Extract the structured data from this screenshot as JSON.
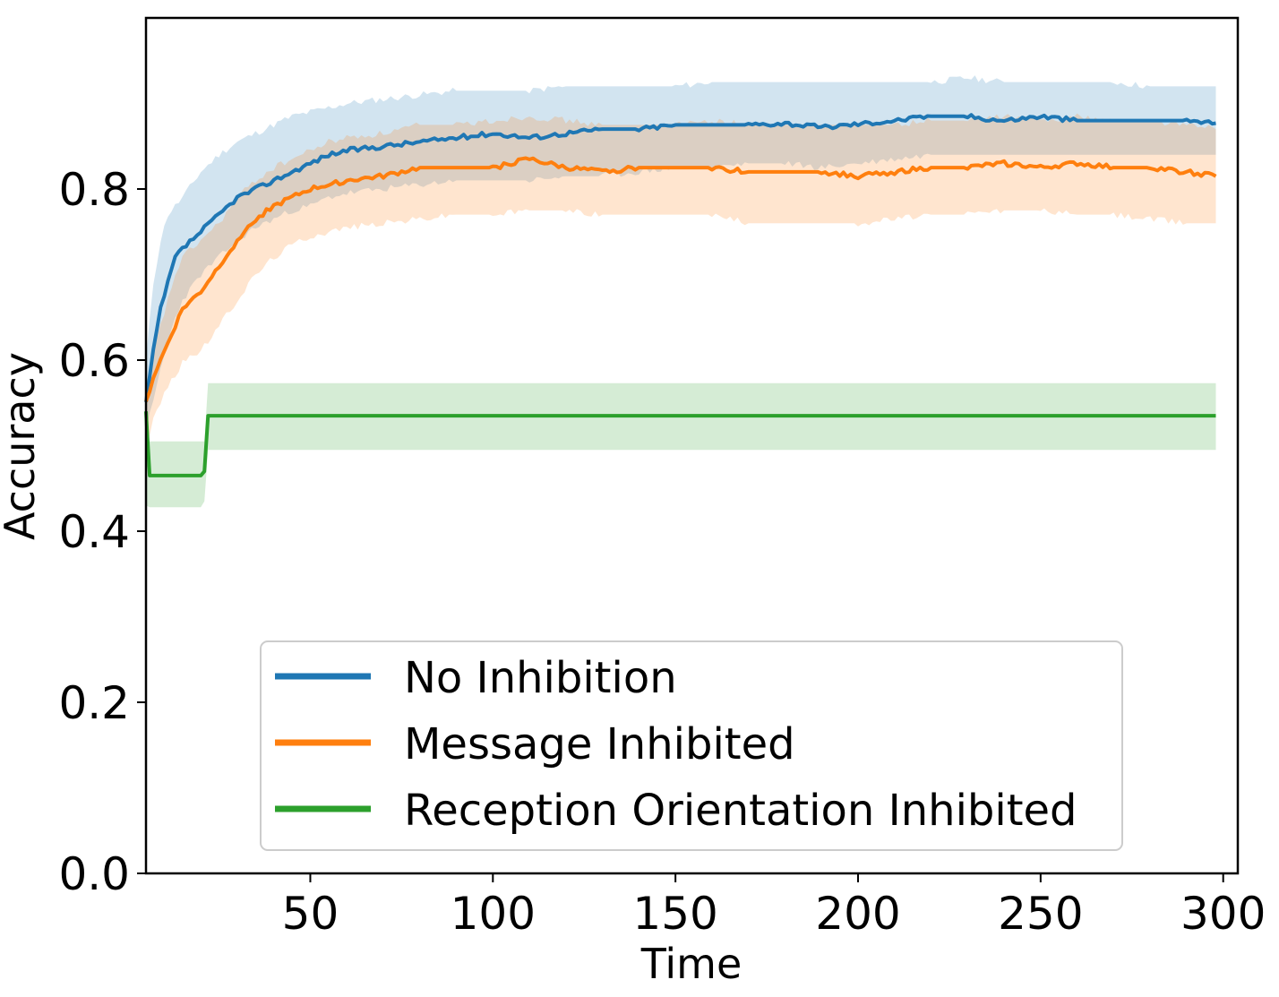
{
  "chart_data": {
    "type": "line",
    "title": "",
    "xlabel": "Time",
    "ylabel": "Accuracy",
    "xlim": [
      5,
      304
    ],
    "ylim": [
      0.0,
      1.0
    ],
    "x_ticks": [
      50,
      100,
      150,
      200,
      250,
      300
    ],
    "x_tick_labels": [
      "50",
      "100",
      "150",
      "200",
      "250",
      "300"
    ],
    "y_ticks": [
      0.0,
      0.2,
      0.4,
      0.6,
      0.8
    ],
    "y_tick_labels": [
      "0.0",
      "0.2",
      "0.4",
      "0.6",
      "0.8"
    ],
    "grid": false,
    "legend_position": "lower center",
    "series": [
      {
        "name": "No Inhibition",
        "color": "#1f77b4",
        "band_color": "#1f77b4",
        "mean": [
          [
            5,
            0.55
          ],
          [
            7,
            0.61
          ],
          [
            9,
            0.66
          ],
          [
            11,
            0.69
          ],
          [
            13,
            0.72
          ],
          [
            15,
            0.73
          ],
          [
            20,
            0.75
          ],
          [
            25,
            0.77
          ],
          [
            30,
            0.79
          ],
          [
            35,
            0.8
          ],
          [
            40,
            0.81
          ],
          [
            45,
            0.82
          ],
          [
            50,
            0.83
          ],
          [
            55,
            0.84
          ],
          [
            60,
            0.845
          ],
          [
            70,
            0.85
          ],
          [
            80,
            0.855
          ],
          [
            90,
            0.86
          ],
          [
            100,
            0.865
          ],
          [
            110,
            0.86
          ],
          [
            120,
            0.865
          ],
          [
            130,
            0.87
          ],
          [
            140,
            0.87
          ],
          [
            150,
            0.875
          ],
          [
            160,
            0.875
          ],
          [
            170,
            0.875
          ],
          [
            180,
            0.877
          ],
          [
            190,
            0.872
          ],
          [
            200,
            0.876
          ],
          [
            210,
            0.88
          ],
          [
            220,
            0.885
          ],
          [
            230,
            0.885
          ],
          [
            240,
            0.88
          ],
          [
            250,
            0.885
          ],
          [
            260,
            0.88
          ],
          [
            270,
            0.88
          ],
          [
            280,
            0.88
          ],
          [
            290,
            0.88
          ],
          [
            298,
            0.877
          ]
        ],
        "upper": [
          [
            5,
            0.6
          ],
          [
            7,
            0.69
          ],
          [
            9,
            0.74
          ],
          [
            11,
            0.77
          ],
          [
            13,
            0.78
          ],
          [
            15,
            0.79
          ],
          [
            20,
            0.82
          ],
          [
            25,
            0.84
          ],
          [
            30,
            0.855
          ],
          [
            35,
            0.865
          ],
          [
            40,
            0.875
          ],
          [
            45,
            0.885
          ],
          [
            50,
            0.89
          ],
          [
            55,
            0.895
          ],
          [
            60,
            0.9
          ],
          [
            70,
            0.905
          ],
          [
            80,
            0.91
          ],
          [
            90,
            0.915
          ],
          [
            100,
            0.915
          ],
          [
            110,
            0.915
          ],
          [
            120,
            0.92
          ],
          [
            130,
            0.92
          ],
          [
            140,
            0.92
          ],
          [
            150,
            0.92
          ],
          [
            160,
            0.925
          ],
          [
            170,
            0.925
          ],
          [
            180,
            0.925
          ],
          [
            190,
            0.925
          ],
          [
            200,
            0.925
          ],
          [
            210,
            0.925
          ],
          [
            220,
            0.925
          ],
          [
            230,
            0.93
          ],
          [
            240,
            0.925
          ],
          [
            250,
            0.925
          ],
          [
            260,
            0.925
          ],
          [
            270,
            0.925
          ],
          [
            280,
            0.92
          ],
          [
            290,
            0.92
          ],
          [
            298,
            0.92
          ]
        ],
        "lower": [
          [
            5,
            0.52
          ],
          [
            7,
            0.55
          ],
          [
            9,
            0.59
          ],
          [
            11,
            0.62
          ],
          [
            13,
            0.65
          ],
          [
            15,
            0.67
          ],
          [
            20,
            0.7
          ],
          [
            25,
            0.72
          ],
          [
            30,
            0.74
          ],
          [
            35,
            0.755
          ],
          [
            40,
            0.765
          ],
          [
            45,
            0.775
          ],
          [
            50,
            0.78
          ],
          [
            55,
            0.79
          ],
          [
            60,
            0.795
          ],
          [
            70,
            0.8
          ],
          [
            80,
            0.805
          ],
          [
            90,
            0.81
          ],
          [
            100,
            0.81
          ],
          [
            110,
            0.81
          ],
          [
            120,
            0.815
          ],
          [
            130,
            0.815
          ],
          [
            140,
            0.82
          ],
          [
            150,
            0.825
          ],
          [
            160,
            0.825
          ],
          [
            170,
            0.83
          ],
          [
            180,
            0.83
          ],
          [
            190,
            0.825
          ],
          [
            200,
            0.83
          ],
          [
            210,
            0.835
          ],
          [
            220,
            0.84
          ],
          [
            230,
            0.84
          ],
          [
            240,
            0.84
          ],
          [
            250,
            0.84
          ],
          [
            260,
            0.84
          ],
          [
            270,
            0.84
          ],
          [
            280,
            0.84
          ],
          [
            290,
            0.84
          ],
          [
            298,
            0.84
          ]
        ]
      },
      {
        "name": "Message Inhibited",
        "color": "#ff7f0e",
        "band_color": "#ff7f0e",
        "mean": [
          [
            5,
            0.55
          ],
          [
            7,
            0.58
          ],
          [
            9,
            0.6
          ],
          [
            11,
            0.62
          ],
          [
            13,
            0.64
          ],
          [
            15,
            0.66
          ],
          [
            20,
            0.68
          ],
          [
            25,
            0.71
          ],
          [
            30,
            0.74
          ],
          [
            35,
            0.765
          ],
          [
            40,
            0.78
          ],
          [
            45,
            0.79
          ],
          [
            50,
            0.8
          ],
          [
            55,
            0.805
          ],
          [
            60,
            0.81
          ],
          [
            70,
            0.815
          ],
          [
            80,
            0.825
          ],
          [
            90,
            0.825
          ],
          [
            100,
            0.825
          ],
          [
            110,
            0.835
          ],
          [
            120,
            0.825
          ],
          [
            130,
            0.82
          ],
          [
            140,
            0.825
          ],
          [
            150,
            0.825
          ],
          [
            160,
            0.825
          ],
          [
            170,
            0.82
          ],
          [
            180,
            0.82
          ],
          [
            190,
            0.82
          ],
          [
            200,
            0.815
          ],
          [
            210,
            0.82
          ],
          [
            220,
            0.825
          ],
          [
            230,
            0.825
          ],
          [
            240,
            0.83
          ],
          [
            250,
            0.825
          ],
          [
            260,
            0.83
          ],
          [
            270,
            0.825
          ],
          [
            280,
            0.825
          ],
          [
            290,
            0.82
          ],
          [
            298,
            0.815
          ]
        ],
        "upper": [
          [
            5,
            0.56
          ],
          [
            7,
            0.61
          ],
          [
            9,
            0.64
          ],
          [
            11,
            0.67
          ],
          [
            13,
            0.7
          ],
          [
            15,
            0.72
          ],
          [
            20,
            0.74
          ],
          [
            25,
            0.76
          ],
          [
            30,
            0.79
          ],
          [
            35,
            0.81
          ],
          [
            40,
            0.825
          ],
          [
            45,
            0.835
          ],
          [
            50,
            0.845
          ],
          [
            55,
            0.855
          ],
          [
            60,
            0.86
          ],
          [
            70,
            0.865
          ],
          [
            80,
            0.875
          ],
          [
            90,
            0.875
          ],
          [
            100,
            0.88
          ],
          [
            110,
            0.885
          ],
          [
            120,
            0.88
          ],
          [
            130,
            0.875
          ],
          [
            140,
            0.875
          ],
          [
            150,
            0.875
          ],
          [
            160,
            0.88
          ],
          [
            170,
            0.875
          ],
          [
            180,
            0.875
          ],
          [
            190,
            0.875
          ],
          [
            200,
            0.875
          ],
          [
            210,
            0.875
          ],
          [
            220,
            0.88
          ],
          [
            230,
            0.88
          ],
          [
            240,
            0.885
          ],
          [
            250,
            0.88
          ],
          [
            260,
            0.885
          ],
          [
            270,
            0.88
          ],
          [
            280,
            0.88
          ],
          [
            290,
            0.875
          ],
          [
            298,
            0.87
          ]
        ],
        "lower": [
          [
            5,
            0.5
          ],
          [
            7,
            0.53
          ],
          [
            9,
            0.55
          ],
          [
            11,
            0.57
          ],
          [
            13,
            0.58
          ],
          [
            15,
            0.6
          ],
          [
            20,
            0.61
          ],
          [
            25,
            0.64
          ],
          [
            30,
            0.67
          ],
          [
            35,
            0.7
          ],
          [
            40,
            0.72
          ],
          [
            45,
            0.735
          ],
          [
            50,
            0.745
          ],
          [
            55,
            0.75
          ],
          [
            60,
            0.755
          ],
          [
            70,
            0.76
          ],
          [
            80,
            0.765
          ],
          [
            90,
            0.77
          ],
          [
            100,
            0.77
          ],
          [
            110,
            0.775
          ],
          [
            120,
            0.775
          ],
          [
            130,
            0.77
          ],
          [
            140,
            0.77
          ],
          [
            150,
            0.77
          ],
          [
            160,
            0.77
          ],
          [
            170,
            0.76
          ],
          [
            180,
            0.76
          ],
          [
            190,
            0.76
          ],
          [
            200,
            0.76
          ],
          [
            210,
            0.765
          ],
          [
            220,
            0.77
          ],
          [
            230,
            0.77
          ],
          [
            240,
            0.775
          ],
          [
            250,
            0.775
          ],
          [
            260,
            0.77
          ],
          [
            270,
            0.77
          ],
          [
            280,
            0.765
          ],
          [
            290,
            0.76
          ],
          [
            298,
            0.76
          ]
        ]
      },
      {
        "name": "Reception Orientation Inhibited",
        "color": "#2ca02c",
        "band_color": "#2ca02c",
        "mean": [
          [
            5,
            0.54
          ],
          [
            6,
            0.465
          ],
          [
            10,
            0.465
          ],
          [
            20,
            0.465
          ],
          [
            21,
            0.47
          ],
          [
            22,
            0.535
          ],
          [
            298,
            0.535
          ]
        ],
        "upper": [
          [
            5,
            0.55
          ],
          [
            6,
            0.505
          ],
          [
            10,
            0.505
          ],
          [
            20,
            0.505
          ],
          [
            21,
            0.505
          ],
          [
            22,
            0.573
          ],
          [
            298,
            0.573
          ]
        ],
        "lower": [
          [
            5,
            0.43
          ],
          [
            6,
            0.428
          ],
          [
            10,
            0.428
          ],
          [
            20,
            0.428
          ],
          [
            21,
            0.435
          ],
          [
            22,
            0.495
          ],
          [
            298,
            0.495
          ]
        ]
      }
    ]
  }
}
